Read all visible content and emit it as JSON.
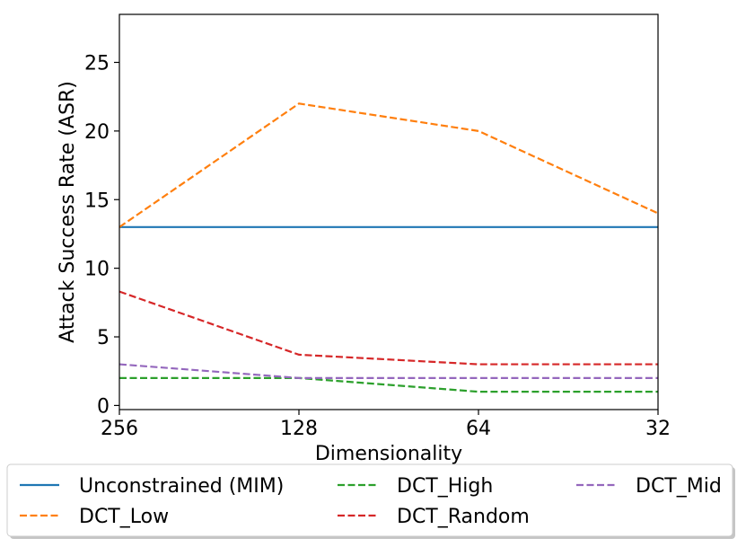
{
  "chart_data": {
    "type": "line",
    "title": "",
    "xlabel": "Dimensionality",
    "ylabel": "Attack Success Rate (ASR)",
    "categories": [
      "256",
      "128",
      "64",
      "32"
    ],
    "ylim": [
      -0.3,
      28.5
    ],
    "yticks": [
      0,
      5,
      10,
      15,
      20,
      25
    ],
    "grid": false,
    "legend_position": "bottom-outside",
    "series": [
      {
        "name": "Unconstrained (MIM)",
        "color": "#1f77b4",
        "style": "solid",
        "values": [
          13,
          13,
          13,
          13
        ]
      },
      {
        "name": "DCT_Low",
        "color": "#ff7f0e",
        "style": "dashed",
        "values": [
          13,
          22,
          20,
          14
        ]
      },
      {
        "name": "DCT_High",
        "color": "#2ca02c",
        "style": "dashed",
        "values": [
          2,
          2,
          1,
          1
        ]
      },
      {
        "name": "DCT_Random",
        "color": "#d62728",
        "style": "dashed",
        "values": [
          8.3,
          3.7,
          3,
          3
        ]
      },
      {
        "name": "DCT_Mid",
        "color": "#9467bd",
        "style": "dashed",
        "values": [
          3,
          2,
          2,
          2
        ]
      }
    ]
  }
}
